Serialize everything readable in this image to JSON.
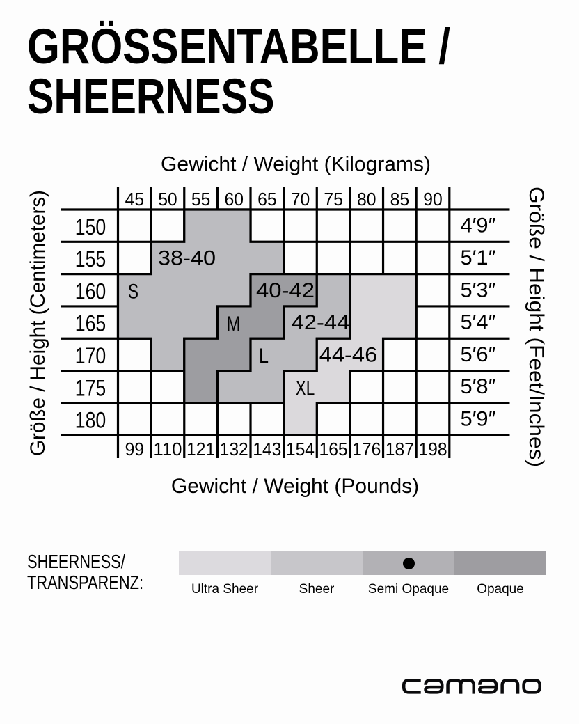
{
  "title": {
    "line1": "GRÖSSENTABELLE /",
    "line2": "SHEERNESS"
  },
  "chart_data": {
    "type": "heatmap",
    "title": "Größentabelle / Sheerness",
    "grid": {
      "rows": 7,
      "cols": 10,
      "grid_on": true
    },
    "axis_top": {
      "label": "Gewicht / Weight (Kilograms)",
      "ticks": [
        "45",
        "50",
        "55",
        "60",
        "65",
        "70",
        "75",
        "80",
        "85",
        "90"
      ]
    },
    "axis_bottom": {
      "label": "Gewicht / Weight (Pounds)",
      "ticks": [
        "99",
        "110",
        "121",
        "132",
        "143",
        "154",
        "165",
        "176",
        "187",
        "198"
      ]
    },
    "axis_left": {
      "label": "Größe / Height (Centimeters)",
      "ticks": [
        "150",
        "155",
        "160",
        "165",
        "170",
        "175",
        "180"
      ]
    },
    "axis_right": {
      "label": "Größe / Height  (Feet/Inches)",
      "ticks": [
        "4′9″",
        "5′1″",
        "5′3″",
        "5′4″",
        "5′6″",
        "5′8″",
        "5′9″"
      ]
    },
    "regions": [
      {
        "id": "s",
        "size_label": "S",
        "range_label": "38-40",
        "color": "#bcbcc0",
        "cells": [
          [
            0,
            2
          ],
          [
            0,
            3
          ],
          [
            1,
            1
          ],
          [
            1,
            2
          ],
          [
            1,
            3
          ],
          [
            1,
            4
          ],
          [
            2,
            0
          ],
          [
            2,
            1
          ],
          [
            2,
            2
          ],
          [
            2,
            3
          ],
          [
            3,
            0
          ],
          [
            3,
            1
          ],
          [
            3,
            2
          ],
          [
            4,
            1
          ]
        ]
      },
      {
        "id": "m",
        "size_label": "M",
        "range_label": "40-42",
        "color": "#9d9da1",
        "cells": [
          [
            2,
            4
          ],
          [
            2,
            5
          ],
          [
            3,
            3
          ],
          [
            3,
            4
          ],
          [
            4,
            2
          ],
          [
            4,
            3
          ],
          [
            5,
            2
          ]
        ]
      },
      {
        "id": "l",
        "size_label": "L",
        "range_label": "42-44",
        "color": "#bcbcc0",
        "cells": [
          [
            2,
            6
          ],
          [
            3,
            5
          ],
          [
            3,
            6
          ],
          [
            4,
            4
          ],
          [
            4,
            5
          ],
          [
            5,
            3
          ],
          [
            5,
            4
          ]
        ]
      },
      {
        "id": "xl",
        "size_label": "XL",
        "range_label": "44-46",
        "color": "#dbd9dc",
        "cells": [
          [
            2,
            7
          ],
          [
            2,
            8
          ],
          [
            3,
            7
          ],
          [
            3,
            8
          ],
          [
            4,
            6
          ],
          [
            4,
            7
          ],
          [
            5,
            5
          ],
          [
            5,
            6
          ],
          [
            6,
            5
          ]
        ]
      }
    ],
    "line_color": "#000000"
  },
  "legend": {
    "heading_line1": "SHEERNESS/",
    "heading_line2": "TRANSPARENZ:",
    "items": [
      {
        "label": "Ultra Sheer",
        "color": "#dcdade",
        "selected": false
      },
      {
        "label": "Sheer",
        "color": "#c7c6ca",
        "selected": false
      },
      {
        "label": "Semi Opaque",
        "color": "#b2b1b5",
        "selected": true
      },
      {
        "label": "Opaque",
        "color": "#9e9da1",
        "selected": false
      }
    ]
  },
  "brand": {
    "name": "camano"
  }
}
